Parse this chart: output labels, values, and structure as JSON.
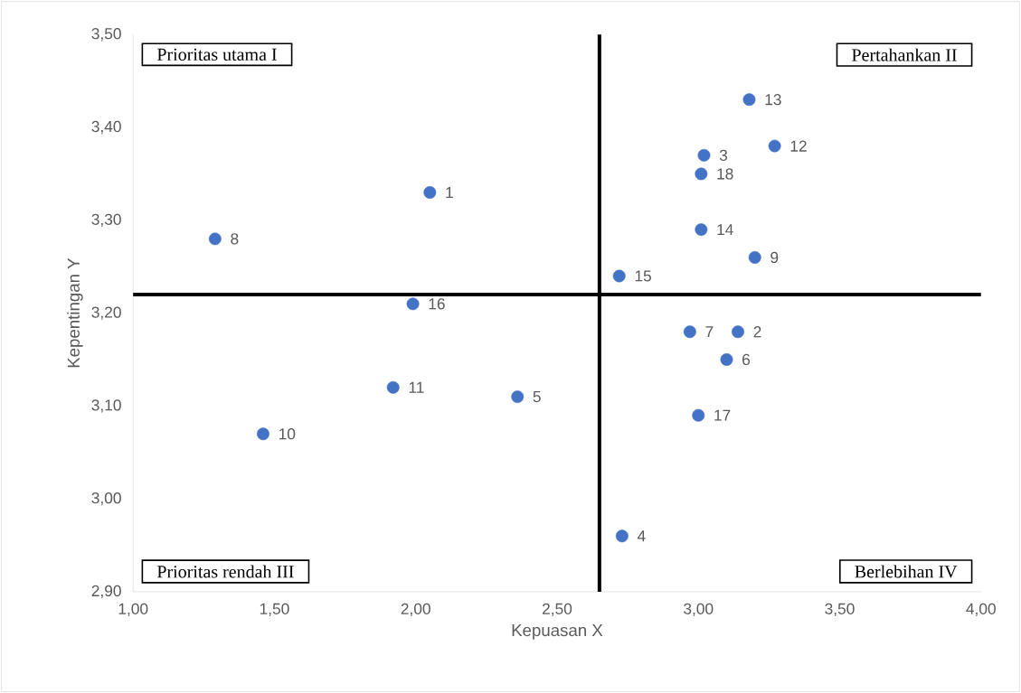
{
  "chart_data": {
    "type": "scatter",
    "xlabel": "Kepuasan X",
    "ylabel": "Kepentingan Y",
    "x": [
      2.05,
      3.14,
      3.02,
      2.73,
      2.36,
      3.1,
      2.97,
      1.29,
      3.2,
      1.46,
      1.92,
      3.27,
      3.18,
      3.01,
      2.72,
      1.99,
      3.0,
      3.01
    ],
    "values": [
      3.33,
      3.18,
      3.37,
      2.96,
      3.11,
      3.15,
      3.18,
      3.28,
      3.26,
      3.07,
      3.12,
      3.38,
      3.43,
      3.29,
      3.24,
      3.21,
      3.09,
      3.35
    ],
    "color": "#4472c4",
    "xlim": [
      1.0,
      4.0
    ],
    "ylim": [
      2.9,
      3.5
    ],
    "xticks": [
      {
        "value": 1.0,
        "label": "1,00"
      },
      {
        "value": 1.5,
        "label": "1,50"
      },
      {
        "value": 2.0,
        "label": "2,00"
      },
      {
        "value": 2.5,
        "label": "2,50"
      },
      {
        "value": 3.0,
        "label": "3,00"
      },
      {
        "value": 3.5,
        "label": "3,50"
      },
      {
        "value": 4.0,
        "label": "4,00"
      }
    ],
    "yticks": [
      {
        "value": 2.9,
        "label": "2,90"
      },
      {
        "value": 3.0,
        "label": "3,00"
      },
      {
        "value": 3.1,
        "label": "3,10"
      },
      {
        "value": 3.2,
        "label": "3,20"
      },
      {
        "value": 3.3,
        "label": "3,30"
      },
      {
        "value": 3.4,
        "label": "3,40"
      },
      {
        "value": 3.5,
        "label": "3,50"
      }
    ],
    "ref_lines": [
      {
        "axis": "x",
        "value": 2.65,
        "color": "#000000"
      },
      {
        "axis": "y",
        "value": 3.22,
        "color": "#000000"
      }
    ],
    "annotations": [
      "Prioritas utama I",
      "Pertahankan II",
      "Prioritas rendah III",
      "Berlebihan IV",
      {
        "text": "1",
        "x": 2.05,
        "y": 3.33
      },
      {
        "text": "2",
        "x": 3.14,
        "y": 3.18
      },
      {
        "text": "3",
        "x": 3.02,
        "y": 3.37
      },
      {
        "text": "4",
        "x": 2.73,
        "y": 2.96
      },
      {
        "text": "5",
        "x": 2.36,
        "y": 3.11
      },
      {
        "text": "6",
        "x": 3.1,
        "y": 3.15
      },
      {
        "text": "7",
        "x": 2.97,
        "y": 3.18
      },
      {
        "text": "8",
        "x": 1.29,
        "y": 3.28
      },
      {
        "text": "9",
        "x": 3.2,
        "y": 3.26
      },
      {
        "text": "10",
        "x": 1.46,
        "y": 3.07
      },
      {
        "text": "11",
        "x": 1.92,
        "y": 3.12
      },
      {
        "text": "12",
        "x": 3.27,
        "y": 3.38
      },
      {
        "text": "13",
        "x": 3.18,
        "y": 3.43
      },
      {
        "text": "14",
        "x": 3.01,
        "y": 3.29
      },
      {
        "text": "15",
        "x": 2.72,
        "y": 3.24
      },
      {
        "text": "16",
        "x": 1.99,
        "y": 3.21
      },
      {
        "text": "17",
        "x": 3.0,
        "y": 3.09
      },
      {
        "text": "18",
        "x": 3.01,
        "y": 3.35
      }
    ]
  }
}
